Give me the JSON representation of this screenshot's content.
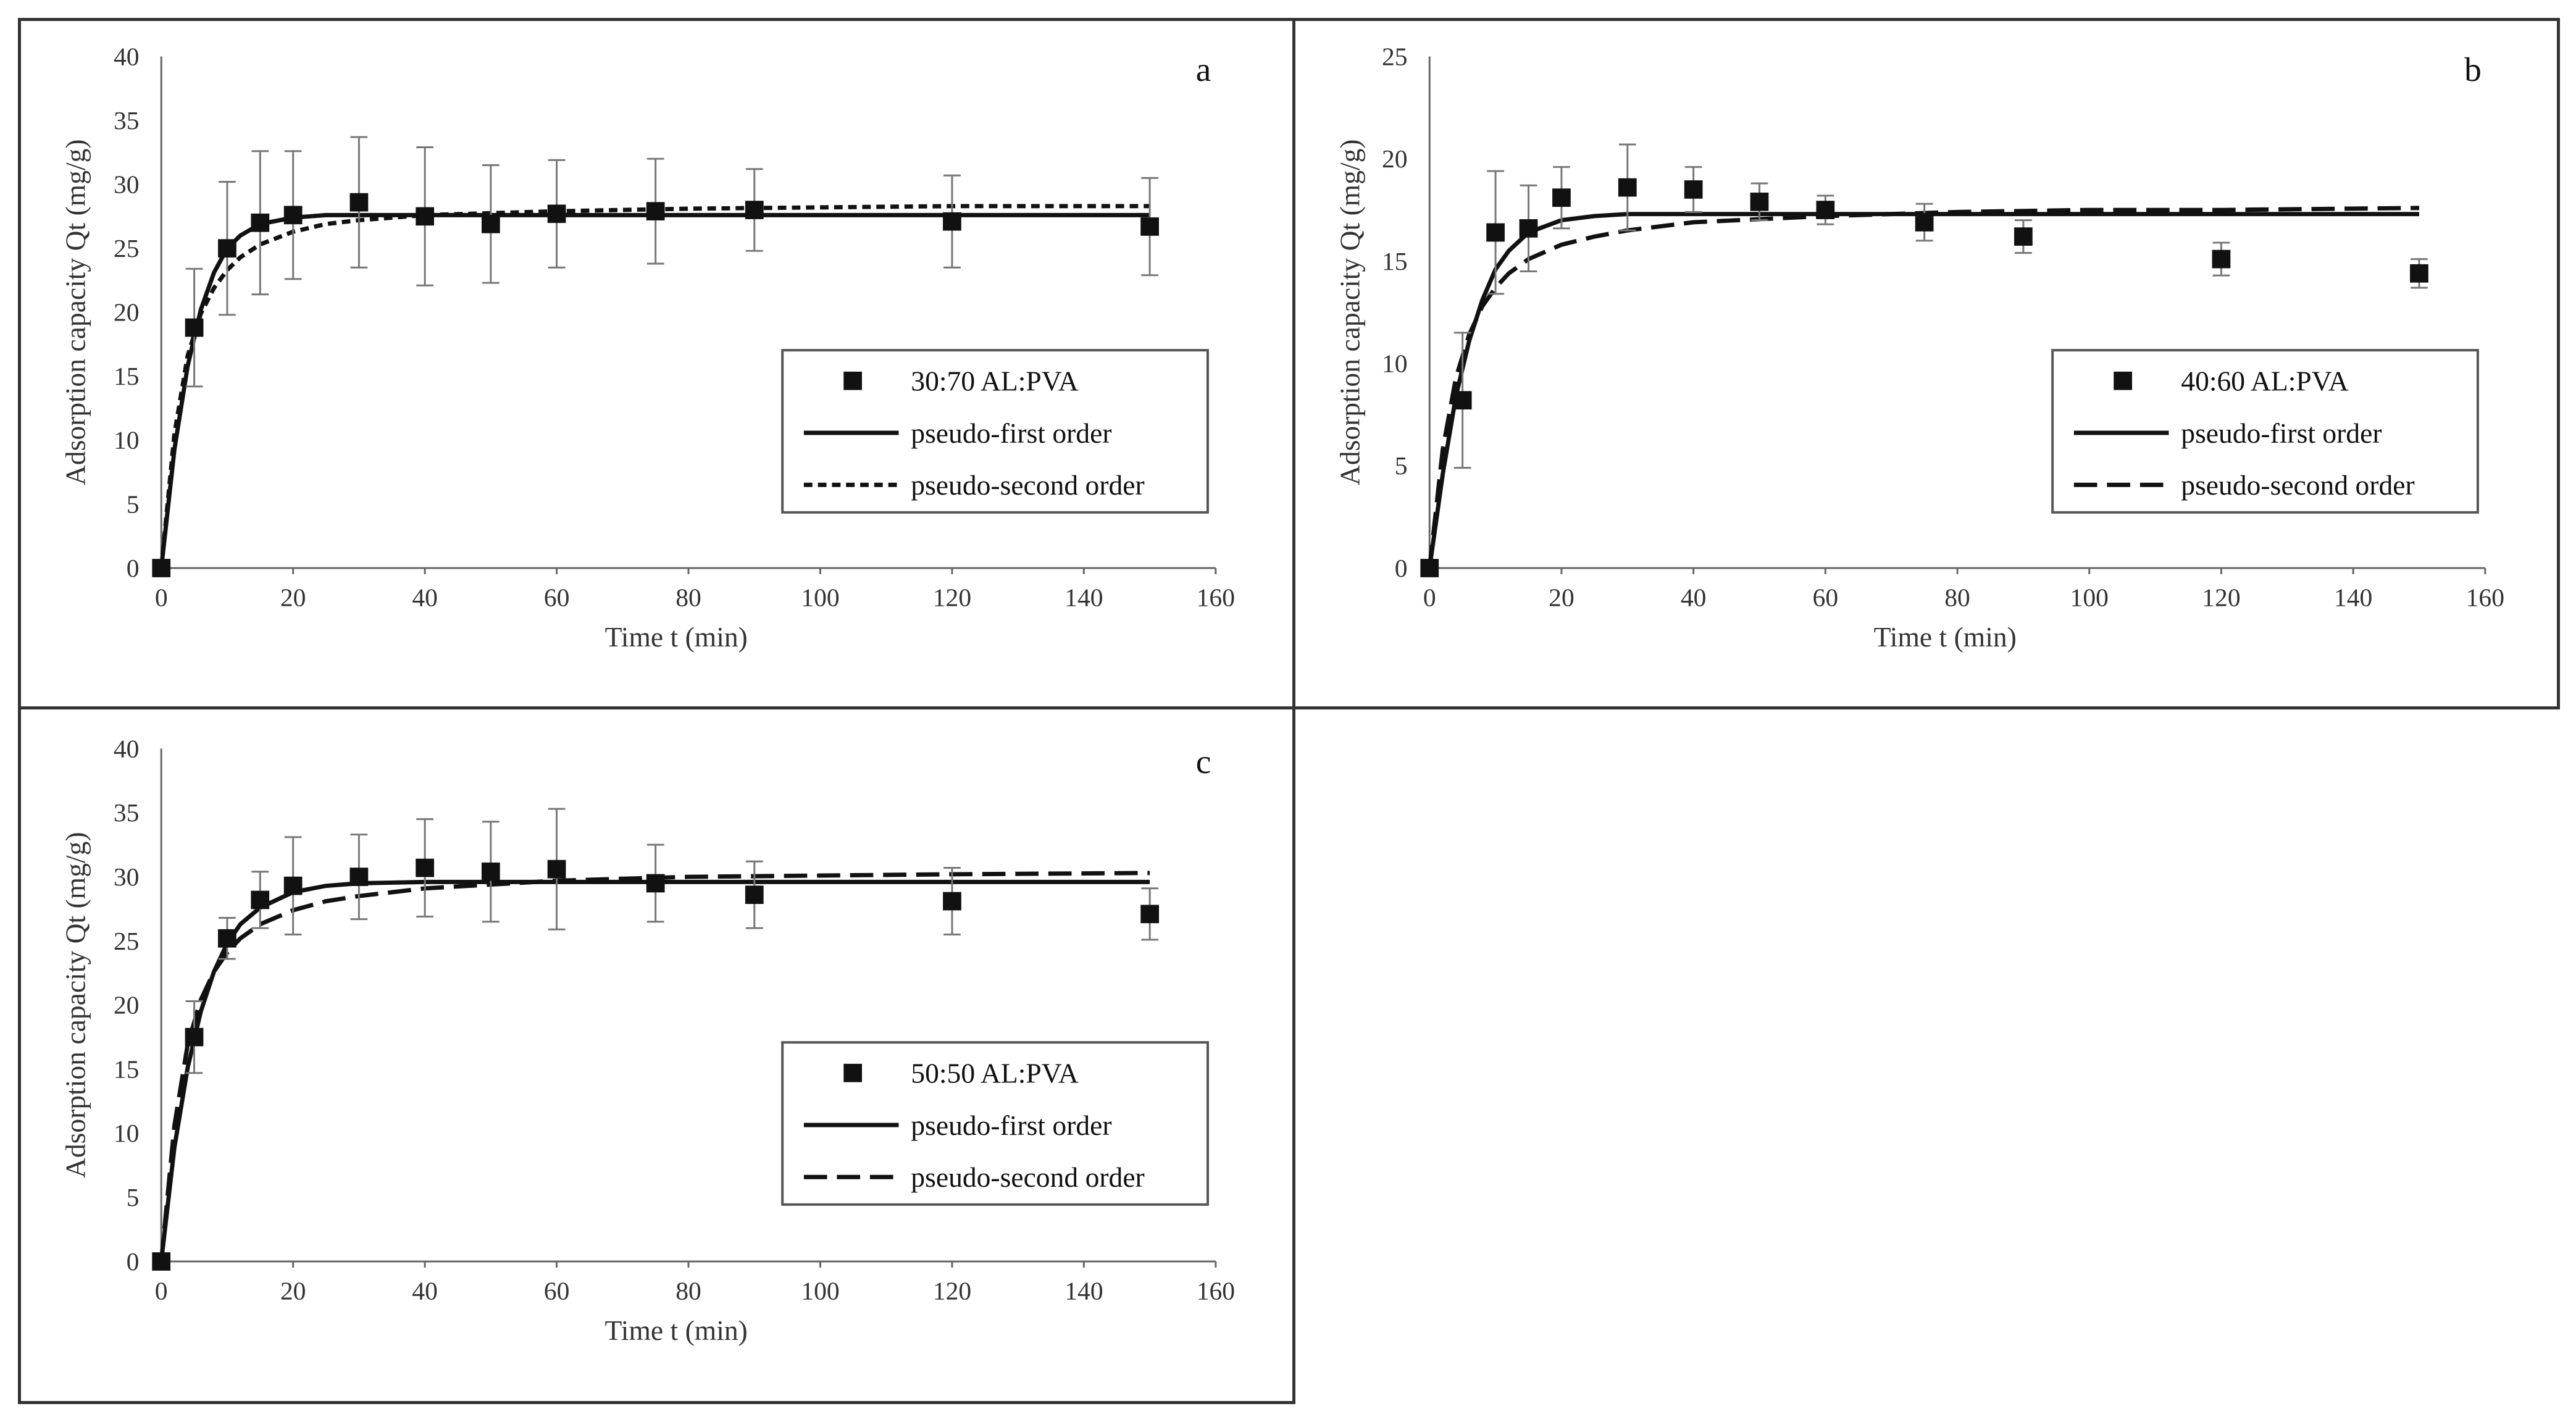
{
  "chart_data": [
    {
      "type": "scatter",
      "panel_letter": "a",
      "xlabel": "Time t (min)",
      "ylabel": "Adsorption capacity Qt (mg/g)",
      "xlim": [
        0,
        160
      ],
      "ylim": [
        0,
        40
      ],
      "xticks": [
        0,
        20,
        40,
        60,
        80,
        100,
        120,
        140,
        160
      ],
      "yticks": [
        0,
        5,
        10,
        15,
        20,
        25,
        30,
        35,
        40
      ],
      "legend_position": "right-middle",
      "series": [
        {
          "name": "30:70 AL:PVA",
          "kind": "points",
          "x": [
            0,
            5,
            10,
            15,
            20,
            30,
            40,
            50,
            60,
            75,
            90,
            120,
            150
          ],
          "y": [
            0,
            18.8,
            25.0,
            27.0,
            27.6,
            28.6,
            27.5,
            26.9,
            27.7,
            27.9,
            28.0,
            27.1,
            26.7
          ],
          "err": [
            0,
            4.6,
            5.2,
            5.6,
            5.0,
            5.1,
            5.4,
            4.6,
            4.2,
            4.1,
            3.2,
            3.6,
            3.8
          ]
        },
        {
          "name": "pseudo-first order",
          "kind": "line",
          "style": "solid",
          "x": [
            0,
            2,
            4,
            6,
            8,
            10,
            12,
            15,
            20,
            25,
            30,
            40,
            60,
            80,
            100,
            120,
            150
          ],
          "y": [
            0,
            9.3,
            15.8,
            20.2,
            23.1,
            25.0,
            26.0,
            26.9,
            27.4,
            27.6,
            27.6,
            27.6,
            27.6,
            27.6,
            27.6,
            27.6,
            27.6
          ]
        },
        {
          "name": "pseudo-second order",
          "kind": "line",
          "style": "dashed",
          "x": [
            0,
            2,
            4,
            6,
            8,
            10,
            12,
            15,
            20,
            25,
            30,
            40,
            60,
            80,
            100,
            120,
            150
          ],
          "y": [
            0,
            10.5,
            16.6,
            19.9,
            21.9,
            23.3,
            24.3,
            25.3,
            26.3,
            26.9,
            27.2,
            27.6,
            27.9,
            28.1,
            28.2,
            28.3,
            28.3
          ]
        }
      ]
    },
    {
      "type": "scatter",
      "panel_letter": "b",
      "xlabel": "Time t (min)",
      "ylabel": "Adsorption capacity Qt (mg/g)",
      "xlim": [
        0,
        160
      ],
      "ylim": [
        0,
        25
      ],
      "xticks": [
        0,
        20,
        40,
        60,
        80,
        100,
        120,
        140,
        160
      ],
      "yticks": [
        0,
        5,
        10,
        15,
        20,
        25
      ],
      "legend_position": "right-middle",
      "series": [
        {
          "name": "40:60 AL:PVA",
          "kind": "points",
          "x": [
            0,
            5,
            10,
            15,
            20,
            30,
            40,
            50,
            60,
            75,
            90,
            120,
            150
          ],
          "y": [
            0,
            8.2,
            16.4,
            16.6,
            18.1,
            18.6,
            18.5,
            17.9,
            17.5,
            16.9,
            16.2,
            15.1,
            14.4
          ],
          "err": [
            0,
            3.3,
            3.0,
            2.1,
            1.5,
            2.1,
            1.1,
            0.9,
            0.7,
            0.9,
            0.8,
            0.8,
            0.7
          ]
        },
        {
          "name": "pseudo-first order",
          "kind": "line",
          "style": "solid",
          "x": [
            0,
            2,
            4,
            6,
            8,
            10,
            12,
            15,
            20,
            25,
            30,
            40,
            60,
            80,
            100,
            120,
            150
          ],
          "y": [
            0,
            4.6,
            8.4,
            11.1,
            13.1,
            14.6,
            15.5,
            16.4,
            17.0,
            17.2,
            17.3,
            17.3,
            17.3,
            17.3,
            17.3,
            17.3,
            17.3
          ]
        },
        {
          "name": "pseudo-second order",
          "kind": "line",
          "style": "dashed",
          "x": [
            0,
            2,
            4,
            6,
            8,
            10,
            12,
            15,
            20,
            25,
            30,
            40,
            60,
            80,
            100,
            120,
            150
          ],
          "y": [
            0,
            5.8,
            9.3,
            11.4,
            12.8,
            13.7,
            14.4,
            15.1,
            15.8,
            16.2,
            16.5,
            16.9,
            17.2,
            17.4,
            17.5,
            17.5,
            17.6
          ]
        }
      ]
    },
    {
      "type": "scatter",
      "panel_letter": "c",
      "xlabel": "Time t (min)",
      "ylabel": "Adsorption capacity Qt (mg/g)",
      "xlim": [
        0,
        160
      ],
      "ylim": [
        0,
        40
      ],
      "xticks": [
        0,
        20,
        40,
        60,
        80,
        100,
        120,
        140,
        160
      ],
      "yticks": [
        0,
        5,
        10,
        15,
        20,
        25,
        30,
        35,
        40
      ],
      "legend_position": "center-bottom",
      "series": [
        {
          "name": "50:50 AL:PVA",
          "kind": "points",
          "x": [
            0,
            5,
            10,
            15,
            20,
            30,
            40,
            50,
            60,
            75,
            90,
            120,
            150
          ],
          "y": [
            0,
            17.5,
            25.2,
            28.2,
            29.3,
            30.0,
            30.7,
            30.4,
            30.6,
            29.5,
            28.6,
            28.1,
            27.1
          ],
          "err": [
            0,
            2.8,
            1.6,
            2.2,
            3.8,
            3.3,
            3.8,
            3.9,
            4.7,
            3.0,
            2.6,
            2.6,
            2.0
          ]
        },
        {
          "name": "pseudo-first order",
          "kind": "line",
          "style": "solid",
          "x": [
            0,
            2,
            4,
            6,
            8,
            10,
            12,
            15,
            20,
            25,
            30,
            40,
            60,
            80,
            100,
            120,
            150
          ],
          "y": [
            0,
            8.9,
            15.1,
            19.5,
            22.6,
            24.8,
            26.3,
            27.6,
            28.8,
            29.3,
            29.5,
            29.6,
            29.6,
            29.6,
            29.6,
            29.6,
            29.6
          ]
        },
        {
          "name": "pseudo-second order",
          "kind": "line",
          "style": "dashed",
          "x": [
            0,
            2,
            4,
            6,
            8,
            10,
            12,
            15,
            20,
            25,
            30,
            40,
            60,
            80,
            100,
            120,
            150
          ],
          "y": [
            0,
            10.6,
            16.9,
            20.4,
            22.6,
            24.1,
            25.2,
            26.3,
            27.4,
            28.1,
            28.5,
            29.1,
            29.7,
            30.0,
            30.1,
            30.2,
            30.3
          ]
        }
      ]
    }
  ]
}
